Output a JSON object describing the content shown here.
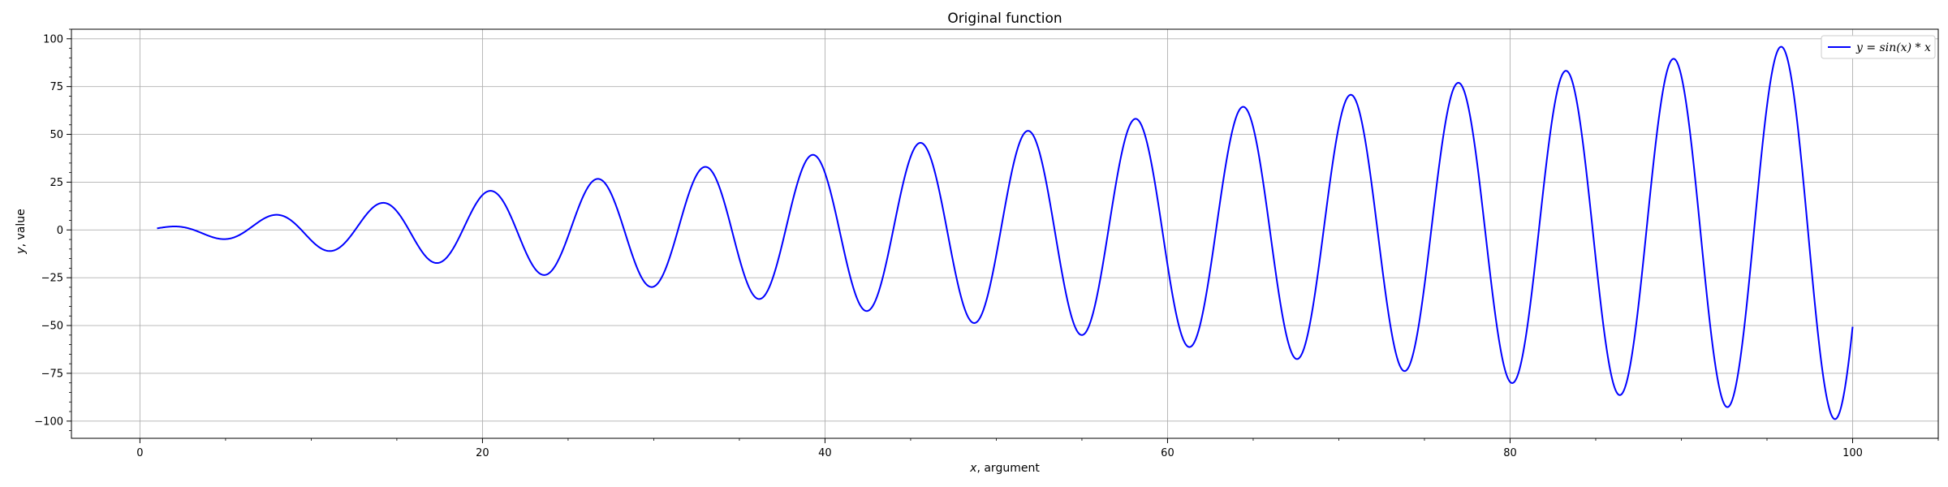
{
  "chart_data": {
    "type": "line",
    "title": "Original function",
    "xlabel_var": "x",
    "xlabel_rest": ", argument",
    "ylabel_var": "y",
    "ylabel_rest": ", value",
    "xlim": [
      -4,
      105
    ],
    "ylim": [
      -109,
      105
    ],
    "x_ticks": [
      0,
      20,
      40,
      60,
      80,
      100
    ],
    "y_ticks": [
      -100,
      -75,
      -50,
      -25,
      0,
      25,
      50,
      75,
      100
    ],
    "x_minor_step": 5,
    "y_minor_step": 5,
    "grid": true,
    "legend_position": "upper right",
    "series": [
      {
        "name": "y = sin(x) * x",
        "color": "#0000ff",
        "function": "sin(x) * x",
        "x_range": [
          1,
          100
        ]
      }
    ]
  }
}
